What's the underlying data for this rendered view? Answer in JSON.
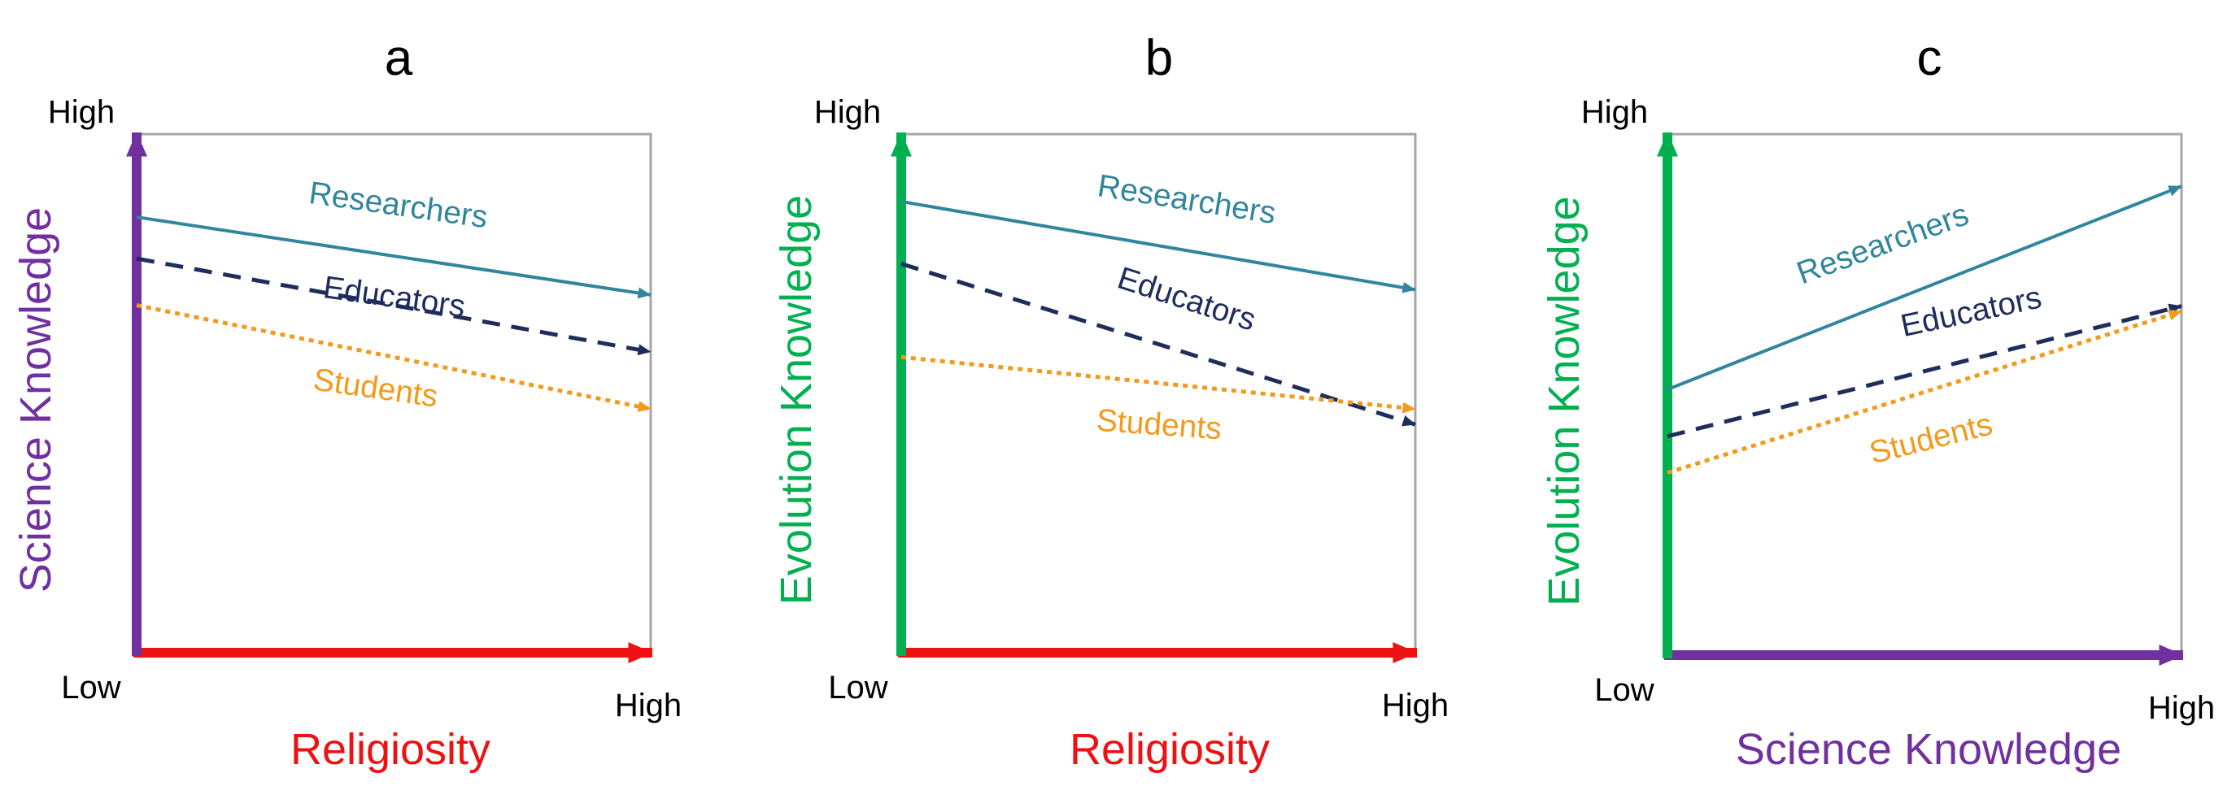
{
  "chart_data": [
    {
      "type": "line",
      "panel_label": "a",
      "xlabel": "Religiosity",
      "ylabel": "Science Knowledge",
      "x_tick_labels": {
        "low": "Low",
        "high": "High"
      },
      "y_tick_labels": {
        "high": "High"
      },
      "xlabel_color": "#ee1111",
      "ylabel_color": "#7030a0",
      "xlim": [
        0,
        1
      ],
      "ylim": [
        0,
        1
      ],
      "series": [
        {
          "name": "Researchers",
          "style": "solid",
          "color": "#31859c",
          "x": [
            0,
            1
          ],
          "y": [
            0.84,
            0.69
          ]
        },
        {
          "name": "Educators",
          "style": "dashed",
          "color": "#1f2d5c",
          "x": [
            0,
            1
          ],
          "y": [
            0.76,
            0.58
          ]
        },
        {
          "name": "Students",
          "style": "dotted",
          "color": "#f29a1b",
          "x": [
            0,
            1
          ],
          "y": [
            0.67,
            0.47
          ]
        }
      ]
    },
    {
      "type": "line",
      "panel_label": "b",
      "xlabel": "Religiosity",
      "ylabel": "Evolution Knowledge",
      "x_tick_labels": {
        "low": "Low",
        "high": "High"
      },
      "y_tick_labels": {
        "high": "High"
      },
      "xlabel_color": "#ee1111",
      "ylabel_color": "#00b050",
      "xlim": [
        0,
        1
      ],
      "ylim": [
        0,
        1
      ],
      "series": [
        {
          "name": "Researchers",
          "style": "solid",
          "color": "#31859c",
          "x": [
            0,
            1
          ],
          "y": [
            0.87,
            0.7
          ]
        },
        {
          "name": "Educators",
          "style": "dashed",
          "color": "#1f2d5c",
          "x": [
            0,
            1
          ],
          "y": [
            0.75,
            0.44
          ]
        },
        {
          "name": "Students",
          "style": "dotted",
          "color": "#f29a1b",
          "x": [
            0,
            1
          ],
          "y": [
            0.57,
            0.47
          ]
        }
      ]
    },
    {
      "type": "line",
      "panel_label": "c",
      "xlabel": "Science Knowledge",
      "ylabel": "Evolution Knowledge",
      "x_tick_labels": {
        "low": "Low",
        "high": "High"
      },
      "y_tick_labels": {
        "high": "High"
      },
      "xlabel_color": "#7030a0",
      "ylabel_color": "#00b050",
      "xlim": [
        0,
        1
      ],
      "ylim": [
        0,
        1
      ],
      "series": [
        {
          "name": "Researchers",
          "style": "solid",
          "color": "#31859c",
          "x": [
            0,
            1
          ],
          "y": [
            0.51,
            0.9
          ]
        },
        {
          "name": "Educators",
          "style": "dashed",
          "color": "#1f2d5c",
          "x": [
            0,
            1
          ],
          "y": [
            0.42,
            0.67
          ]
        },
        {
          "name": "Students",
          "style": "dotted",
          "color": "#f29a1b",
          "x": [
            0,
            1
          ],
          "y": [
            0.35,
            0.66
          ]
        }
      ]
    }
  ]
}
